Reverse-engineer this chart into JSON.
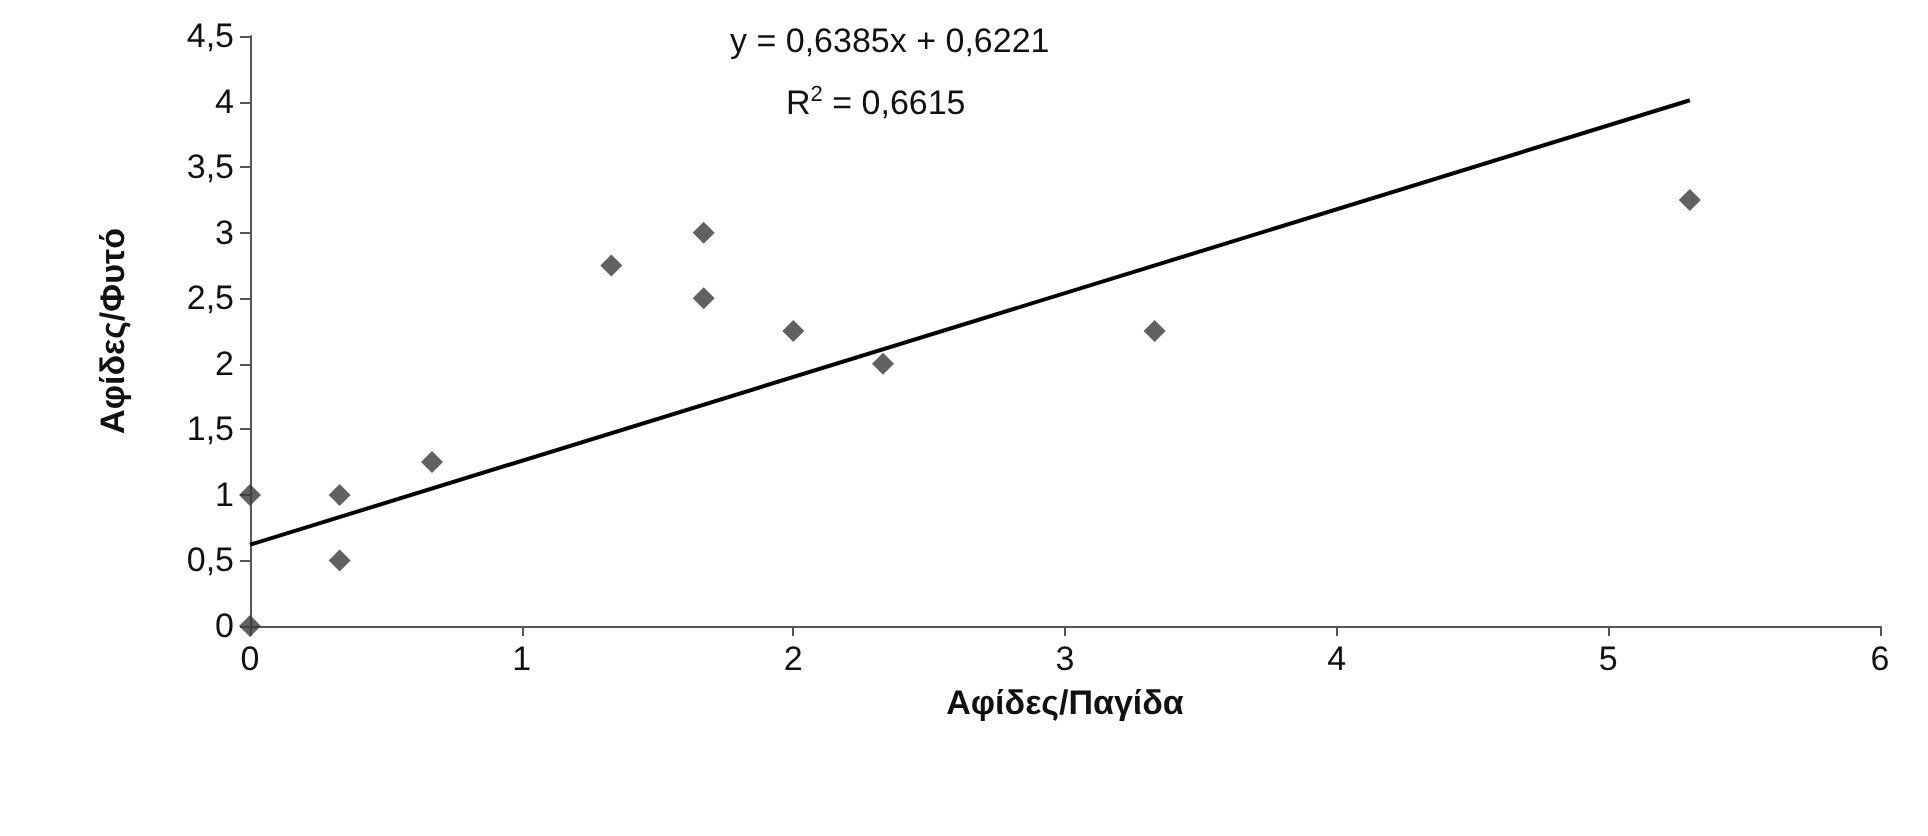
{
  "chart_data": {
    "type": "scatter",
    "xlabel": "Αφίδες/Παγίδα",
    "ylabel": "Αφίδες/Φυτό",
    "xlim": [
      0,
      6
    ],
    "xticks": [
      0,
      1,
      2,
      3,
      4,
      5,
      6
    ],
    "ylim": [
      0,
      4.5
    ],
    "yticks": [
      0,
      {
        "value": 0.5,
        "label": "0,5"
      },
      1,
      {
        "value": 1.5,
        "label": "1,5"
      },
      2,
      {
        "value": 2.5,
        "label": "2,5"
      },
      3,
      {
        "value": 3.5,
        "label": "3,5"
      },
      4,
      {
        "value": 4.5,
        "label": "4,5"
      }
    ],
    "grid": false,
    "marker": "diamond",
    "series": [
      {
        "color": "#3a3a3a",
        "x": [
          0,
          0,
          0.33,
          0.33,
          0.67,
          1.33,
          1.67,
          1.67,
          2,
          2.33,
          3.33,
          5.3
        ],
        "values": [
          0,
          1,
          1,
          0.5,
          1.25,
          2.75,
          3,
          2.5,
          2.25,
          2,
          2.25,
          3.25
        ]
      },
      {
        "type": "line",
        "color": "#000000",
        "marker": "none",
        "line_style": "solid",
        "x": [
          0,
          5.3
        ],
        "values": [
          0.62,
          4.01
        ]
      }
    ],
    "annotations": [
      "y = 0,6385x + 0,6221",
      "R$^{2}$ = 0,6615"
    ]
  }
}
